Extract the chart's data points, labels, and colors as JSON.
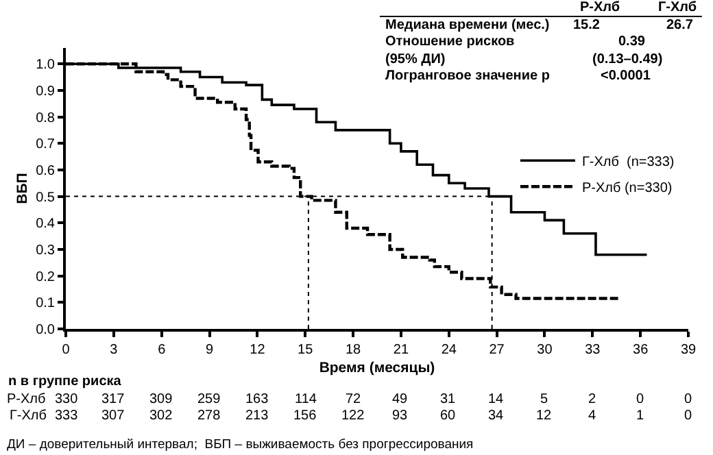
{
  "chart_data": {
    "type": "step",
    "xlabel": "Время (месяцы)",
    "ylabel": "ВБП",
    "xlim": [
      0,
      39
    ],
    "ylim": [
      0,
      1.06
    ],
    "xticks": [
      0,
      3,
      6,
      9,
      12,
      15,
      18,
      21,
      24,
      27,
      30,
      33,
      36,
      39
    ],
    "yticks": [
      {
        "value": 0,
        "label": "0.0"
      },
      {
        "value": 0.1,
        "label": "0.1"
      },
      {
        "value": 0.2,
        "label": "0.2"
      },
      {
        "value": 0.3,
        "label": "0.3"
      },
      {
        "value": 0.4,
        "label": "0.4"
      },
      {
        "value": 0.5,
        "label": "0.5"
      },
      {
        "value": 0.6,
        "label": "0.6"
      },
      {
        "value": 0.7,
        "label": "0.7"
      },
      {
        "value": 0.8,
        "label": "0.8"
      },
      {
        "value": 0.9,
        "label": "0.9"
      },
      {
        "value": 1,
        "label": "1.0"
      }
    ],
    "legend": "right",
    "marker": "none",
    "series": [
      {
        "name": "Г-Хлб  (n=333)",
        "color": "#000000",
        "line_style": "solid",
        "x": [
          0,
          3.3,
          7.2,
          8.4,
          9.8,
          11.3,
          12.3,
          12.9,
          14.3,
          15.7,
          16.9,
          19.2,
          20.3,
          21,
          22,
          23,
          24,
          25,
          26.5,
          27.9,
          30,
          31.2,
          33.2,
          36.4
        ],
        "values": [
          1.0,
          0.985,
          0.97,
          0.95,
          0.93,
          0.92,
          0.865,
          0.845,
          0.83,
          0.78,
          0.75,
          0.75,
          0.7,
          0.67,
          0.62,
          0.58,
          0.55,
          0.53,
          0.5,
          0.44,
          0.41,
          0.36,
          0.28,
          0.28
        ]
      },
      {
        "name": "Р-Хлб (n=330)",
        "color": "#000000",
        "line_style": "dashed",
        "x": [
          0,
          4.4,
          6.1,
          6.4,
          7.2,
          8.1,
          9.5,
          10.6,
          11.3,
          11.5,
          11.6,
          12.05,
          12.9,
          14.0,
          14.3,
          14.7,
          15.4,
          16.9,
          17.6,
          18.9,
          20.3,
          21.1,
          22.8,
          23.1,
          24,
          24.8,
          26.6,
          27.3,
          28.2,
          34.6
        ],
        "values": [
          1.0,
          0.97,
          0.96,
          0.94,
          0.915,
          0.87,
          0.855,
          0.83,
          0.79,
          0.73,
          0.674,
          0.63,
          0.614,
          0.606,
          0.571,
          0.5,
          0.485,
          0.44,
          0.38,
          0.356,
          0.3,
          0.27,
          0.26,
          0.235,
          0.214,
          0.19,
          0.158,
          0.13,
          0.115,
          0.115
        ]
      }
    ],
    "ref_lines": [
      {
        "axis": "y",
        "value": 0.5,
        "line_style": "dotted",
        "color": "#000000"
      },
      {
        "axis": "x",
        "value": 15.2,
        "line_style": "dotted",
        "color": "#000000"
      },
      {
        "axis": "x",
        "value": 26.7,
        "line_style": "dotted",
        "color": "#000000"
      }
    ],
    "annotations": [
      "Р-Хлб",
      "Г-Хлб",
      "Медиана времени (мес.)",
      "15.2",
      "26.7",
      "Отношение рисков",
      "0.39",
      "(95% ДИ)",
      "(0.13–0.49)",
      "Логранговое значение p",
      "<0.0001",
      "n в группе риска",
      "Р-Хлб 330 317 309 259 163 114 72 49 31 14 5 2 0 0",
      "Г-Хлб 333 307 302 278 213 156 122 93 60 34 12 4 1 0",
      "ДИ – доверительный интервал;  ВБП – выживаемость без прогрессирования"
    ]
  }
}
